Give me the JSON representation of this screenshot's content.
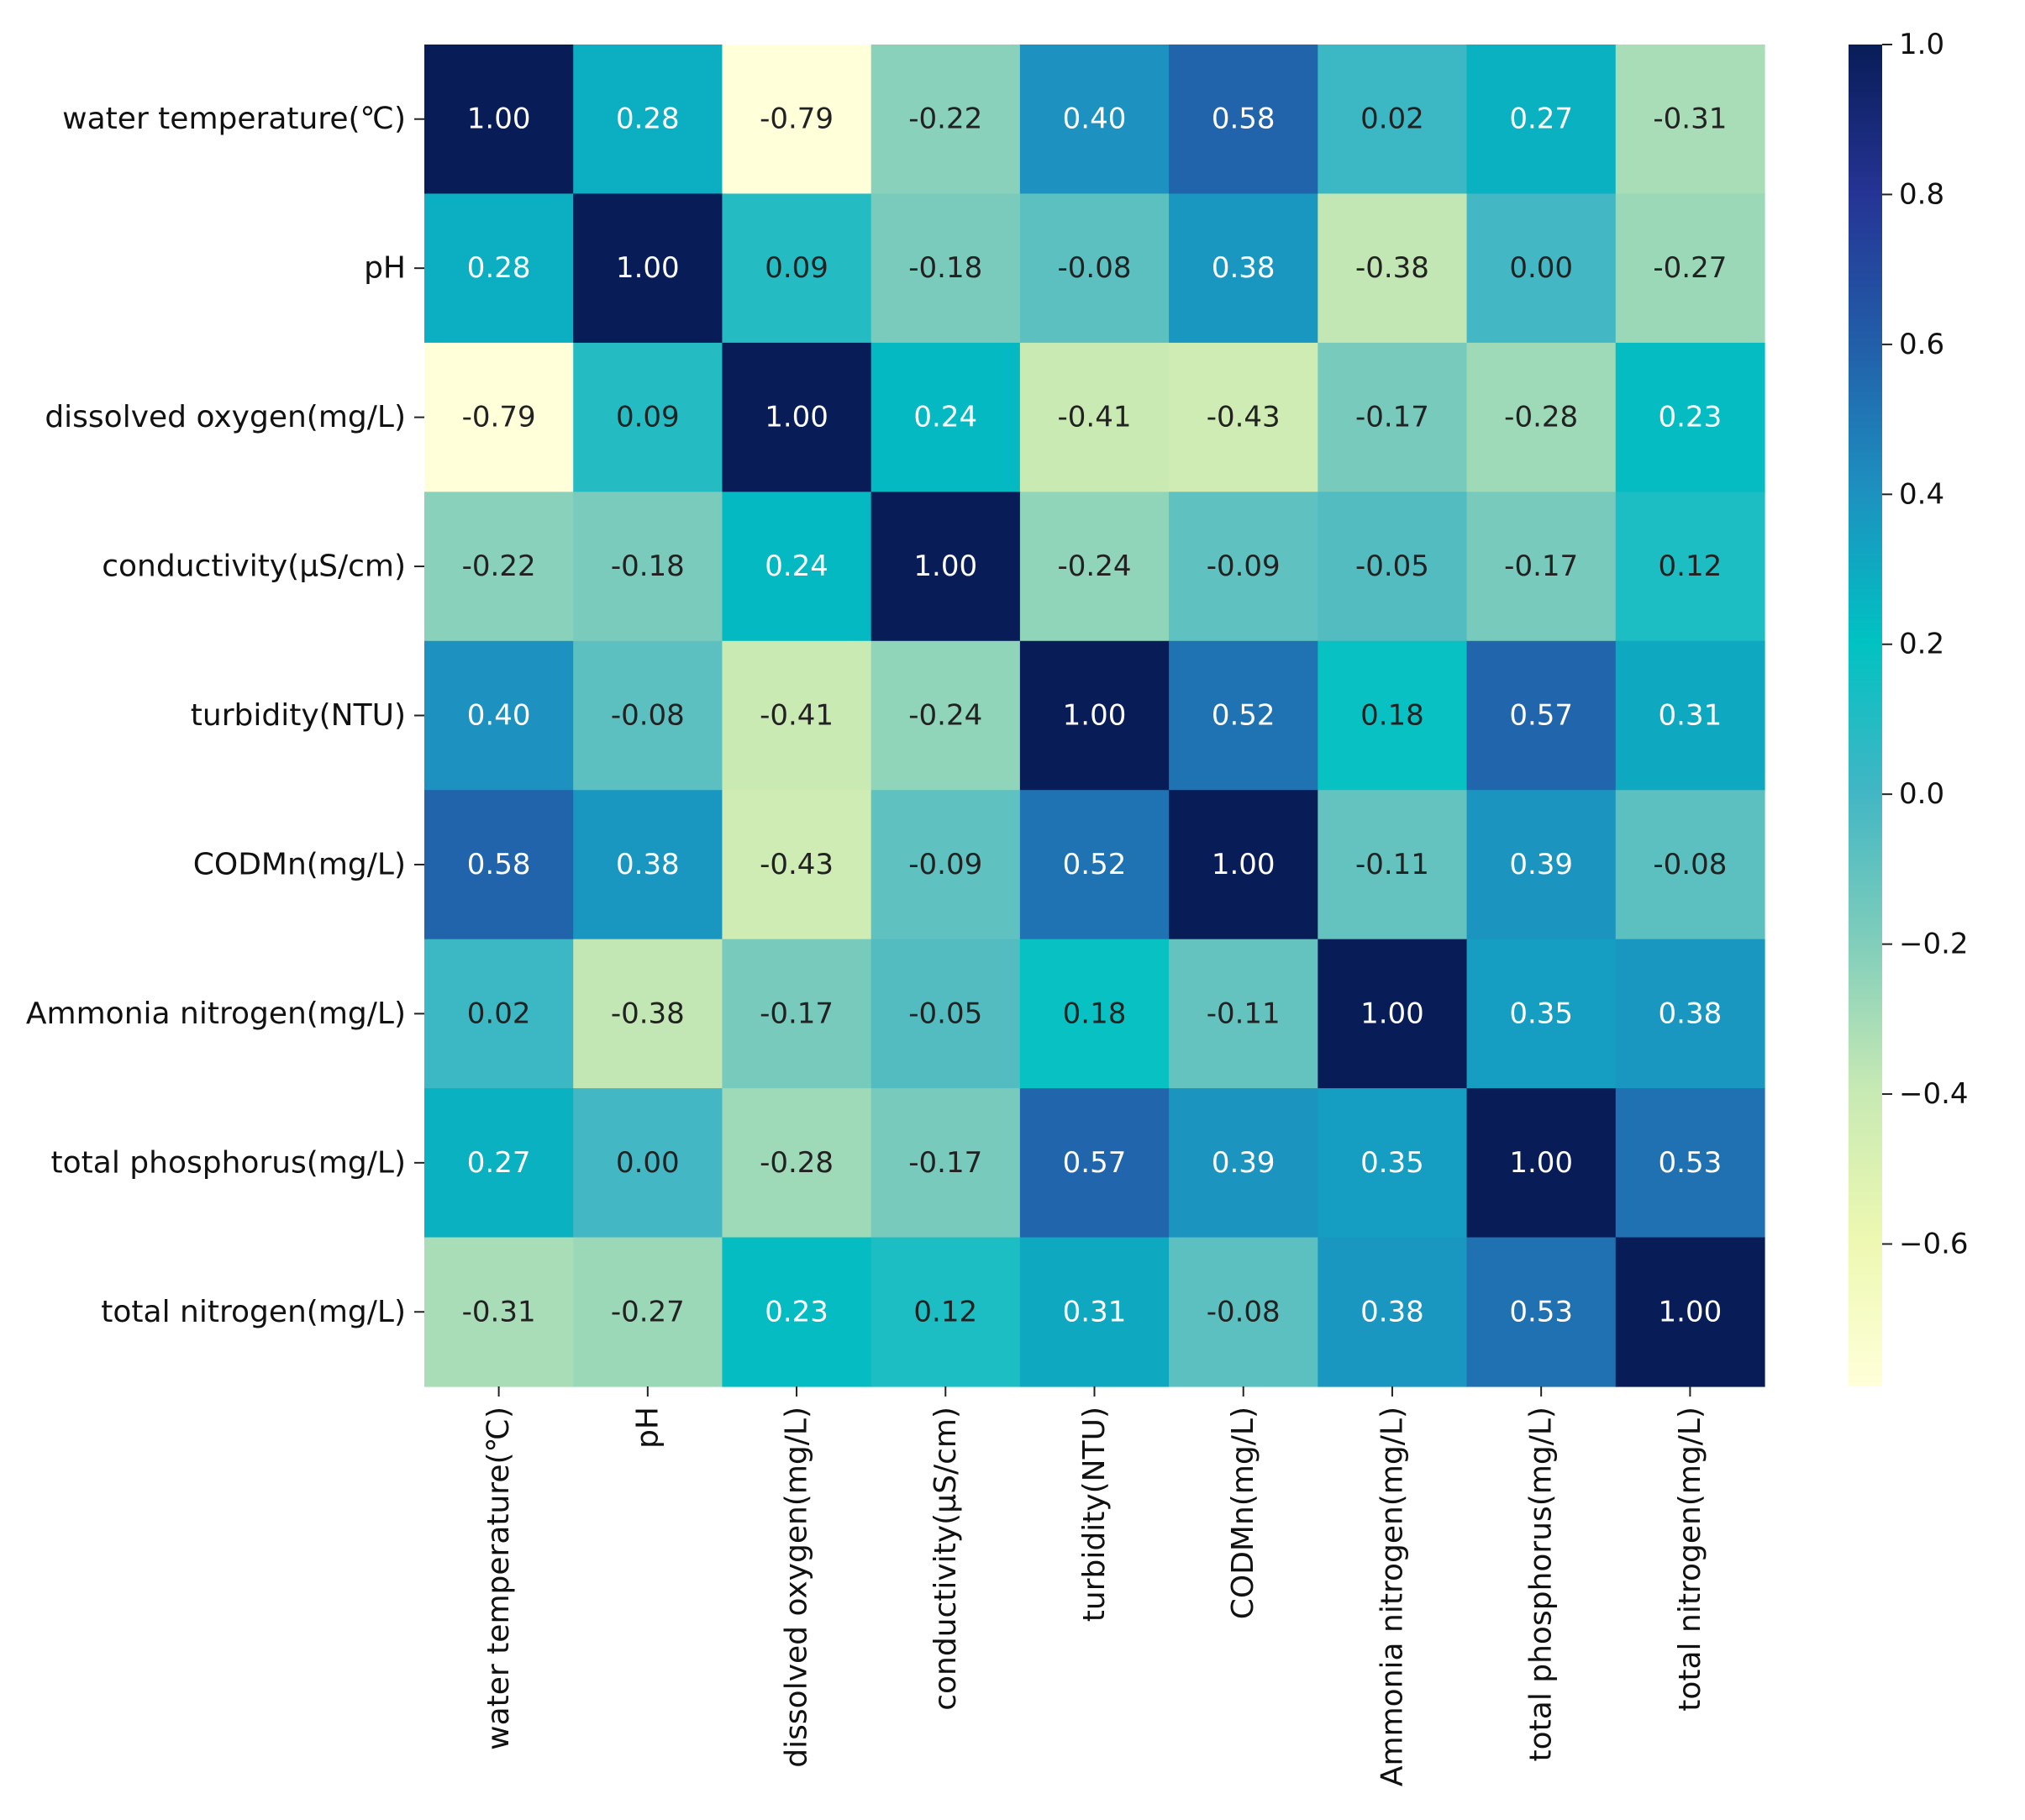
{
  "chart_data": {
    "type": "heatmap",
    "title": "",
    "variables": [
      "water temperature(℃)",
      "pH",
      "dissolved oxygen(mg/L)",
      "conductivity(μS/cm)",
      "turbidity(NTU)",
      "CODMn(mg/L)",
      "Ammonia nitrogen(mg/L)",
      "total phosphorus(mg/L)",
      "total nitrogen(mg/L)"
    ],
    "matrix": [
      [
        1.0,
        0.28,
        -0.79,
        -0.22,
        0.4,
        0.58,
        0.02,
        0.27,
        -0.31
      ],
      [
        0.28,
        1.0,
        0.09,
        -0.18,
        -0.08,
        0.38,
        -0.38,
        0.0,
        -0.27
      ],
      [
        -0.79,
        0.09,
        1.0,
        0.24,
        -0.41,
        -0.43,
        -0.17,
        -0.28,
        0.23
      ],
      [
        -0.22,
        -0.18,
        0.24,
        1.0,
        -0.24,
        -0.09,
        -0.05,
        -0.17,
        0.12
      ],
      [
        0.4,
        -0.08,
        -0.41,
        -0.24,
        1.0,
        0.52,
        0.18,
        0.57,
        0.31
      ],
      [
        0.58,
        0.38,
        -0.43,
        -0.09,
        0.52,
        1.0,
        -0.11,
        0.39,
        -0.08
      ],
      [
        0.02,
        -0.38,
        -0.17,
        -0.05,
        0.18,
        -0.11,
        1.0,
        0.35,
        0.38
      ],
      [
        0.27,
        0.0,
        -0.28,
        -0.17,
        0.57,
        0.39,
        0.35,
        1.0,
        0.53
      ],
      [
        -0.31,
        -0.27,
        0.23,
        0.12,
        0.31,
        -0.08,
        0.38,
        0.53,
        1.0
      ]
    ],
    "annotation_format": "0.00",
    "colormap": "YlGnBu",
    "color_range": [
      -0.79,
      1.0
    ],
    "colorbar": {
      "ticks": [
        1.0,
        0.8,
        0.6,
        0.4,
        0.2,
        0.0,
        -0.2,
        -0.4,
        -0.6
      ],
      "tick_labels": [
        "1.0",
        "0.8",
        "0.6",
        "0.4",
        "0.2",
        "0.0",
        "−0.2",
        "−0.4",
        "−0.6"
      ],
      "position": "right"
    },
    "colormap_stops": [
      "#ffffd9",
      "#edf8b1",
      "#c7e9b4",
      "#7fcdbb",
      "#41b6c4",
      "#00c2c2",
      "#1d91c0",
      "#225ea8",
      "#253494",
      "#081d58"
    ],
    "annotation_colors": {
      "light": "#ffffff",
      "dark": "#222222"
    }
  }
}
